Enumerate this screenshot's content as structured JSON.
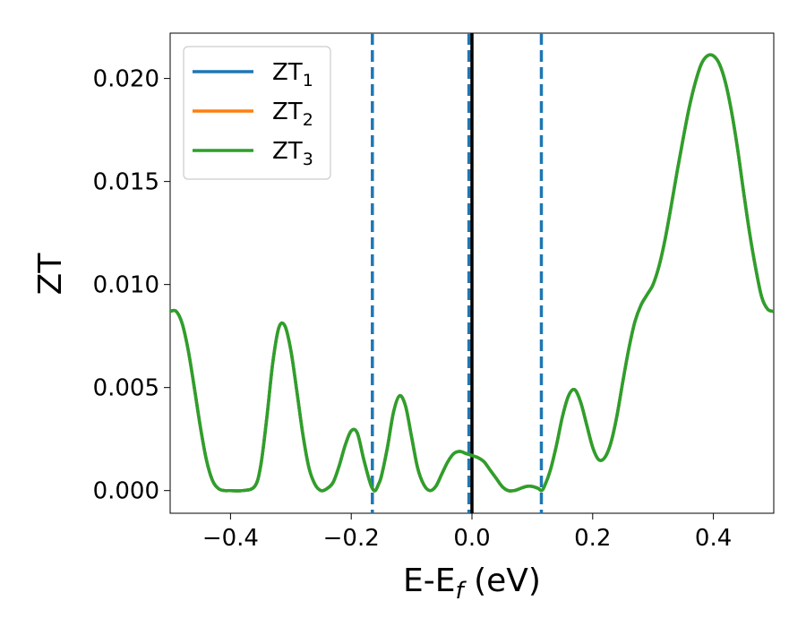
{
  "chart_data": {
    "type": "line",
    "xlabel": "E-E_f (eV)",
    "ylabel": "ZT",
    "xlim": [
      -0.5,
      0.5
    ],
    "ylim": [
      -0.0011,
      0.0222
    ],
    "x_ticks": [
      -0.4,
      -0.2,
      0.0,
      0.2,
      0.4
    ],
    "x_tick_labels": [
      "−0.4",
      "−0.2",
      "0.0",
      "0.2",
      "0.4"
    ],
    "y_ticks": [
      0.0,
      0.005,
      0.01,
      0.015,
      0.02
    ],
    "y_tick_labels": [
      "0.000",
      "0.005",
      "0.010",
      "0.015",
      "0.020"
    ],
    "legend_position": "upper-left",
    "grid": false,
    "vertical_lines": [
      {
        "x": -0.165,
        "style": "dashed",
        "color": "#1f77b4"
      },
      {
        "x": -0.005,
        "style": "dashed",
        "color": "#1f77b4"
      },
      {
        "x": 0.0,
        "style": "solid",
        "color": "#000000"
      },
      {
        "x": 0.115,
        "style": "dashed",
        "color": "#1f77b4"
      }
    ],
    "series": [
      {
        "name": "ZT",
        "subscript": "1",
        "color": "#1f77b4"
      },
      {
        "name": "ZT",
        "subscript": "2",
        "color": "#ff7f0e"
      },
      {
        "name": "ZT",
        "subscript": "3",
        "color": "#2ca02c"
      }
    ],
    "curve": {
      "x": [
        -0.5,
        -0.49,
        -0.48,
        -0.47,
        -0.46,
        -0.45,
        -0.44,
        -0.43,
        -0.42,
        -0.41,
        -0.4,
        -0.38,
        -0.36,
        -0.35,
        -0.34,
        -0.33,
        -0.32,
        -0.31,
        -0.3,
        -0.29,
        -0.28,
        -0.27,
        -0.26,
        -0.25,
        -0.24,
        -0.23,
        -0.22,
        -0.21,
        -0.2,
        -0.19,
        -0.18,
        -0.17,
        -0.165,
        -0.16,
        -0.155,
        -0.15,
        -0.14,
        -0.13,
        -0.12,
        -0.11,
        -0.1,
        -0.09,
        -0.08,
        -0.07,
        -0.06,
        -0.05,
        -0.04,
        -0.03,
        -0.02,
        -0.01,
        0.0,
        0.01,
        0.02,
        0.03,
        0.04,
        0.05,
        0.06,
        0.07,
        0.08,
        0.09,
        0.1,
        0.11,
        0.115,
        0.12,
        0.13,
        0.14,
        0.15,
        0.16,
        0.17,
        0.18,
        0.19,
        0.2,
        0.21,
        0.22,
        0.23,
        0.24,
        0.25,
        0.26,
        0.27,
        0.28,
        0.29,
        0.3,
        0.31,
        0.32,
        0.33,
        0.34,
        0.35,
        0.36,
        0.37,
        0.38,
        0.39,
        0.4,
        0.41,
        0.42,
        0.43,
        0.44,
        0.45,
        0.46,
        0.47,
        0.48,
        0.49,
        0.5
      ],
      "y": [
        0.0087,
        0.0087,
        0.0081,
        0.0068,
        0.005,
        0.0031,
        0.0015,
        0.0005,
        0.0001,
        0.0,
        0.0,
        0.0,
        0.0002,
        0.0012,
        0.0035,
        0.0062,
        0.0079,
        0.008,
        0.0068,
        0.0048,
        0.0027,
        0.0011,
        0.0003,
        0.0,
        0.0001,
        0.0004,
        0.0012,
        0.0022,
        0.0029,
        0.0028,
        0.0016,
        0.0005,
        0.0001,
        0.0,
        0.0003,
        0.0007,
        0.0021,
        0.0038,
        0.0046,
        0.0041,
        0.0026,
        0.0011,
        0.0003,
        0.0,
        0.0002,
        0.0008,
        0.0014,
        0.0018,
        0.0019,
        0.0018,
        0.0017,
        0.0016,
        0.0014,
        0.001,
        0.0006,
        0.0002,
        0.0,
        0.0,
        0.0001,
        0.0002,
        0.0002,
        0.0001,
        0.0,
        0.0002,
        0.001,
        0.0022,
        0.0036,
        0.0046,
        0.0049,
        0.0043,
        0.0032,
        0.0021,
        0.0015,
        0.0016,
        0.0023,
        0.0036,
        0.0053,
        0.0069,
        0.0082,
        0.009,
        0.0095,
        0.01,
        0.0109,
        0.0122,
        0.0138,
        0.0155,
        0.0171,
        0.0186,
        0.0198,
        0.0207,
        0.0211,
        0.0211,
        0.0207,
        0.0198,
        0.0184,
        0.0166,
        0.0145,
        0.0125,
        0.0108,
        0.0094,
        0.0088,
        0.0087
      ]
    }
  }
}
